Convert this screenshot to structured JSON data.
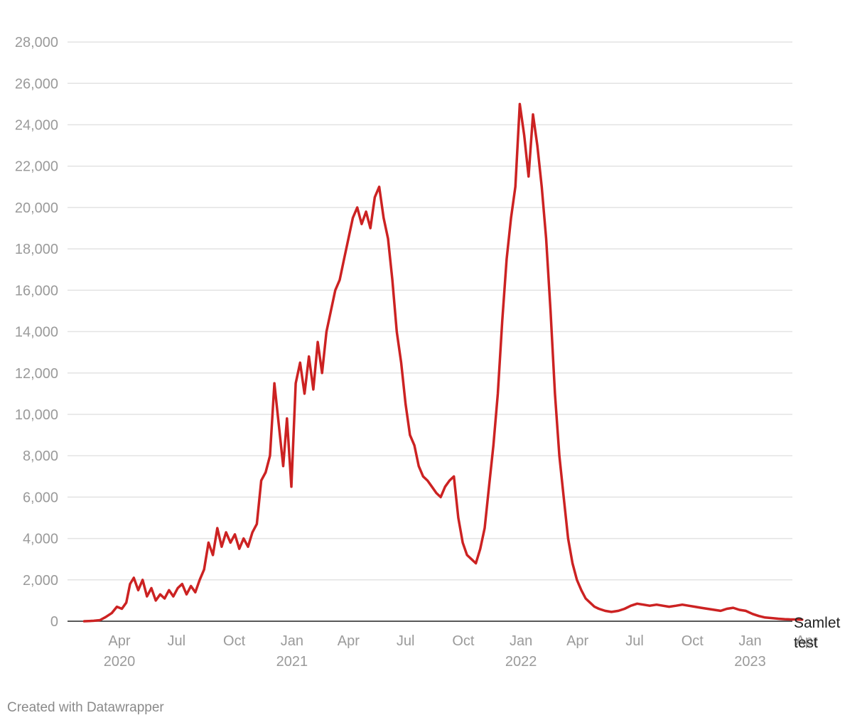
{
  "chart_data": {
    "type": "line",
    "title": "",
    "xlabel": "",
    "ylabel": "",
    "ylim": [
      0,
      29000
    ],
    "xlim": [
      "2020-02-01",
      "2023-04-01"
    ],
    "grid": true,
    "y_ticks": [
      0,
      2000,
      4000,
      6000,
      8000,
      10000,
      12000,
      14000,
      16000,
      18000,
      20000,
      22000,
      24000,
      26000,
      28000
    ],
    "y_tick_labels": [
      "0",
      "2,000",
      "4,000",
      "6,000",
      "8,000",
      "10,000",
      "12,000",
      "14,000",
      "16,000",
      "18,000",
      "20,000",
      "22,000",
      "24,000",
      "26,000",
      "28,000"
    ],
    "x_ticks": [
      {
        "date": "2020-04-01",
        "label": "Apr",
        "year": "2020"
      },
      {
        "date": "2020-07-01",
        "label": "Jul",
        "year": ""
      },
      {
        "date": "2020-10-01",
        "label": "Oct",
        "year": ""
      },
      {
        "date": "2021-01-01",
        "label": "Jan",
        "year": "2021"
      },
      {
        "date": "2021-04-01",
        "label": "Apr",
        "year": ""
      },
      {
        "date": "2021-07-01",
        "label": "Jul",
        "year": ""
      },
      {
        "date": "2021-10-01",
        "label": "Oct",
        "year": ""
      },
      {
        "date": "2022-01-01",
        "label": "Jan",
        "year": "2022"
      },
      {
        "date": "2022-04-01",
        "label": "Apr",
        "year": ""
      },
      {
        "date": "2022-07-01",
        "label": "Jul",
        "year": ""
      },
      {
        "date": "2022-10-01",
        "label": "Oct",
        "year": ""
      },
      {
        "date": "2023-01-01",
        "label": "Jan",
        "year": "2023"
      },
      {
        "date": "2023-04-01",
        "label": "Apr",
        "year": ""
      }
    ],
    "series": [
      {
        "name": "Samlet test",
        "color": "#cc2222",
        "points": [
          [
            "2020-02-05",
            0
          ],
          [
            "2020-02-20",
            20
          ],
          [
            "2020-03-01",
            50
          ],
          [
            "2020-03-10",
            200
          ],
          [
            "2020-03-20",
            400
          ],
          [
            "2020-03-28",
            700
          ],
          [
            "2020-04-05",
            600
          ],
          [
            "2020-04-12",
            900
          ],
          [
            "2020-04-18",
            1800
          ],
          [
            "2020-04-24",
            2100
          ],
          [
            "2020-05-01",
            1500
          ],
          [
            "2020-05-08",
            2000
          ],
          [
            "2020-05-15",
            1200
          ],
          [
            "2020-05-22",
            1600
          ],
          [
            "2020-05-29",
            1000
          ],
          [
            "2020-06-05",
            1300
          ],
          [
            "2020-06-12",
            1100
          ],
          [
            "2020-06-19",
            1500
          ],
          [
            "2020-06-26",
            1200
          ],
          [
            "2020-07-03",
            1600
          ],
          [
            "2020-07-10",
            1800
          ],
          [
            "2020-07-17",
            1300
          ],
          [
            "2020-07-24",
            1700
          ],
          [
            "2020-07-31",
            1400
          ],
          [
            "2020-08-07",
            2000
          ],
          [
            "2020-08-14",
            2500
          ],
          [
            "2020-08-21",
            3800
          ],
          [
            "2020-08-28",
            3200
          ],
          [
            "2020-09-04",
            4500
          ],
          [
            "2020-09-11",
            3600
          ],
          [
            "2020-09-18",
            4300
          ],
          [
            "2020-09-25",
            3800
          ],
          [
            "2020-10-02",
            4200
          ],
          [
            "2020-10-09",
            3500
          ],
          [
            "2020-10-16",
            4000
          ],
          [
            "2020-10-23",
            3600
          ],
          [
            "2020-10-30",
            4300
          ],
          [
            "2020-11-06",
            4700
          ],
          [
            "2020-11-13",
            6800
          ],
          [
            "2020-11-20",
            7200
          ],
          [
            "2020-11-27",
            8000
          ],
          [
            "2020-12-04",
            11500
          ],
          [
            "2020-12-11",
            9500
          ],
          [
            "2020-12-18",
            7500
          ],
          [
            "2020-12-24",
            9800
          ],
          [
            "2020-12-31",
            6500
          ],
          [
            "2021-01-07",
            11500
          ],
          [
            "2021-01-14",
            12500
          ],
          [
            "2021-01-21",
            11000
          ],
          [
            "2021-01-28",
            12800
          ],
          [
            "2021-02-04",
            11200
          ],
          [
            "2021-02-11",
            13500
          ],
          [
            "2021-02-18",
            12000
          ],
          [
            "2021-02-25",
            14000
          ],
          [
            "2021-03-04",
            15000
          ],
          [
            "2021-03-11",
            16000
          ],
          [
            "2021-03-18",
            16500
          ],
          [
            "2021-03-25",
            17500
          ],
          [
            "2021-04-01",
            18500
          ],
          [
            "2021-04-08",
            19500
          ],
          [
            "2021-04-15",
            20000
          ],
          [
            "2021-04-22",
            19200
          ],
          [
            "2021-04-29",
            19800
          ],
          [
            "2021-05-06",
            19000
          ],
          [
            "2021-05-13",
            20500
          ],
          [
            "2021-05-20",
            21000
          ],
          [
            "2021-05-27",
            19500
          ],
          [
            "2021-06-03",
            18500
          ],
          [
            "2021-06-10",
            16500
          ],
          [
            "2021-06-17",
            14000
          ],
          [
            "2021-06-24",
            12500
          ],
          [
            "2021-07-01",
            10500
          ],
          [
            "2021-07-08",
            9000
          ],
          [
            "2021-07-15",
            8500
          ],
          [
            "2021-07-22",
            7500
          ],
          [
            "2021-07-29",
            7000
          ],
          [
            "2021-08-05",
            6800
          ],
          [
            "2021-08-12",
            6500
          ],
          [
            "2021-08-19",
            6200
          ],
          [
            "2021-08-26",
            6000
          ],
          [
            "2021-09-02",
            6500
          ],
          [
            "2021-09-09",
            6800
          ],
          [
            "2021-09-16",
            7000
          ],
          [
            "2021-09-23",
            5000
          ],
          [
            "2021-09-30",
            3800
          ],
          [
            "2021-10-07",
            3200
          ],
          [
            "2021-10-14",
            3000
          ],
          [
            "2021-10-21",
            2800
          ],
          [
            "2021-10-28",
            3500
          ],
          [
            "2021-11-04",
            4500
          ],
          [
            "2021-11-11",
            6500
          ],
          [
            "2021-11-18",
            8500
          ],
          [
            "2021-11-25",
            11000
          ],
          [
            "2021-12-02",
            14500
          ],
          [
            "2021-12-09",
            17500
          ],
          [
            "2021-12-16",
            19500
          ],
          [
            "2021-12-23",
            21000
          ],
          [
            "2021-12-30",
            25000
          ],
          [
            "2022-01-06",
            23500
          ],
          [
            "2022-01-13",
            21500
          ],
          [
            "2022-01-20",
            24500
          ],
          [
            "2022-01-27",
            23000
          ],
          [
            "2022-02-03",
            21000
          ],
          [
            "2022-02-10",
            18500
          ],
          [
            "2022-02-17",
            15000
          ],
          [
            "2022-02-24",
            11000
          ],
          [
            "2022-03-03",
            8000
          ],
          [
            "2022-03-10",
            6000
          ],
          [
            "2022-03-17",
            4000
          ],
          [
            "2022-03-24",
            2800
          ],
          [
            "2022-03-31",
            2000
          ],
          [
            "2022-04-07",
            1500
          ],
          [
            "2022-04-14",
            1100
          ],
          [
            "2022-04-21",
            900
          ],
          [
            "2022-04-28",
            700
          ],
          [
            "2022-05-05",
            600
          ],
          [
            "2022-05-15",
            500
          ],
          [
            "2022-05-25",
            450
          ],
          [
            "2022-06-05",
            500
          ],
          [
            "2022-06-15",
            600
          ],
          [
            "2022-06-25",
            750
          ],
          [
            "2022-07-05",
            850
          ],
          [
            "2022-07-15",
            800
          ],
          [
            "2022-07-25",
            750
          ],
          [
            "2022-08-05",
            800
          ],
          [
            "2022-08-15",
            750
          ],
          [
            "2022-08-25",
            700
          ],
          [
            "2022-09-05",
            750
          ],
          [
            "2022-09-15",
            800
          ],
          [
            "2022-09-25",
            750
          ],
          [
            "2022-10-05",
            700
          ],
          [
            "2022-10-15",
            650
          ],
          [
            "2022-10-25",
            600
          ],
          [
            "2022-11-05",
            550
          ],
          [
            "2022-11-15",
            500
          ],
          [
            "2022-11-25",
            600
          ],
          [
            "2022-12-05",
            650
          ],
          [
            "2022-12-15",
            550
          ],
          [
            "2022-12-25",
            500
          ],
          [
            "2023-01-05",
            350
          ],
          [
            "2023-01-15",
            250
          ],
          [
            "2023-01-25",
            180
          ],
          [
            "2023-02-05",
            150
          ],
          [
            "2023-02-15",
            120
          ],
          [
            "2023-02-25",
            100
          ],
          [
            "2023-03-05",
            90
          ],
          [
            "2023-03-15",
            85
          ],
          [
            "2023-03-25",
            80
          ]
        ]
      }
    ],
    "series_label_lines": [
      "Samlet",
      "test"
    ]
  },
  "credit": "Created with Datawrapper"
}
